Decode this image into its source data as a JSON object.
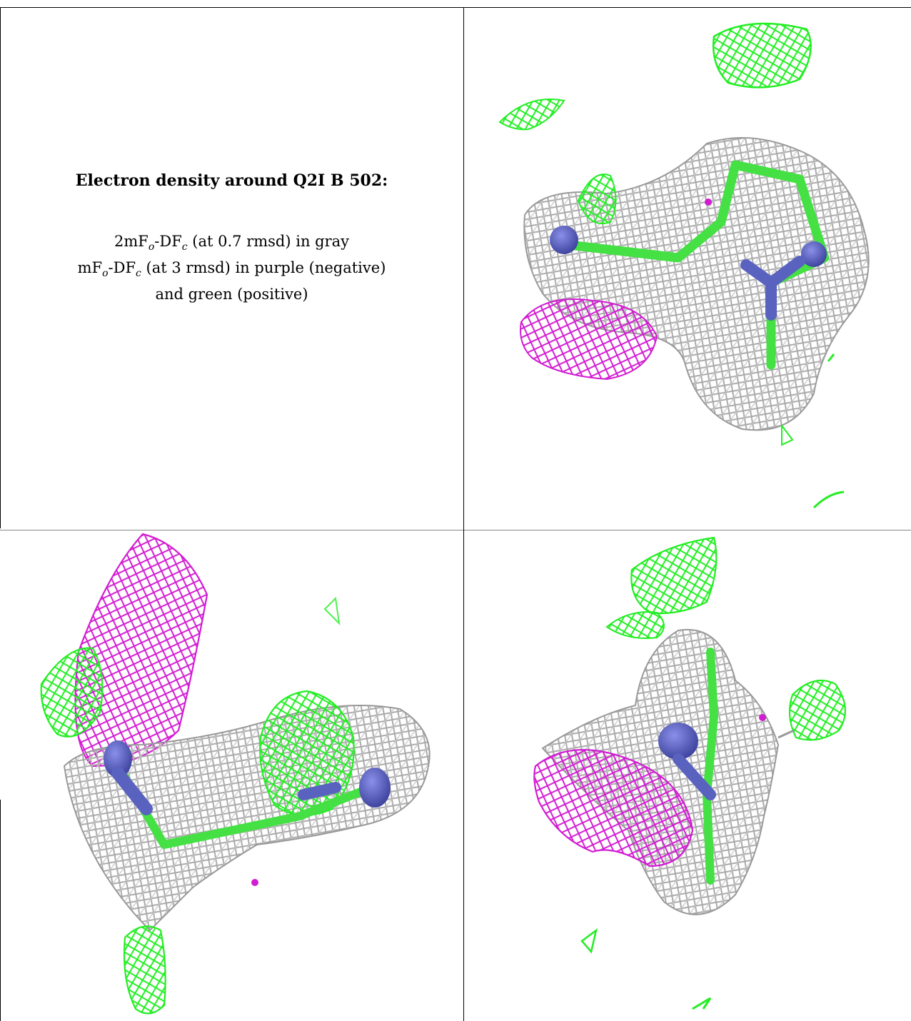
{
  "caption": {
    "title": "Electron density around Q2I B 502:",
    "line1": {
      "a": "2mF",
      "sub1": "o",
      "b": "-DF",
      "sub2": "c",
      "rest": " (at 0.7 rmsd) in gray"
    },
    "line2": {
      "a": "mF",
      "sub1": "o",
      "b": "-DF",
      "sub2": "c",
      "rest": " (at 3 rmsd) in purple (negative)"
    },
    "line3": "and green (positive)"
  },
  "colors": {
    "gray_mesh": "#a9a9a9",
    "negative_mesh": "#d21cd2",
    "positive_mesh": "#22ee22",
    "stick_carbon": "#44e044",
    "stick_nitrogen": "#5a62c0",
    "lines": "#000000"
  },
  "panels": [
    {
      "name": "view-top-right",
      "content": "density-mesh"
    },
    {
      "name": "view-bottom-left",
      "content": "density-mesh"
    },
    {
      "name": "view-bottom-right",
      "content": "density-mesh"
    }
  ]
}
